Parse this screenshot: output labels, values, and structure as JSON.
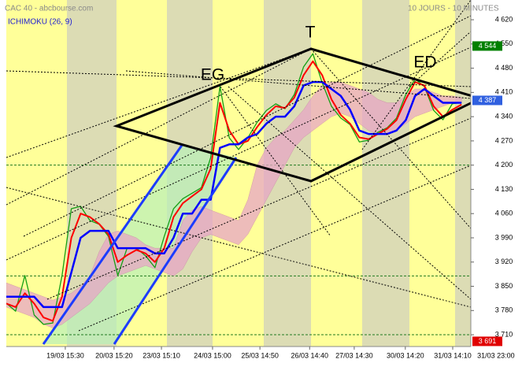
{
  "chart_data": {
    "type": "line",
    "title": "CAC 40 - abcbourse.com",
    "subtitle": "10 JOURS - 10 MINUTES",
    "indicator": "ICHIMOKU (26, 9)",
    "annotations": [
      "EG",
      "T",
      "ED"
    ],
    "xlim": [
      0,
      100
    ],
    "ylim": [
      3676,
      4677
    ],
    "xticks": [
      {
        "value": 12.7,
        "label": "19/03 15:30"
      },
      {
        "value": 23.2,
        "label": "20/03 15:20"
      },
      {
        "value": 33.4,
        "label": "23/03 15:10"
      },
      {
        "value": 44.4,
        "label": "24/03 15:00"
      },
      {
        "value": 54.6,
        "label": "25/03 14:50"
      },
      {
        "value": 65.3,
        "label": "26/03 14:40"
      },
      {
        "value": 74.9,
        "label": "27/03 14:30"
      },
      {
        "value": 85.9,
        "label": "30/03 14:20"
      },
      {
        "value": 96.1,
        "label": "31/03 14:10"
      },
      {
        "value": 105.4,
        "label": "31/03 23:00"
      }
    ],
    "yticks": [
      {
        "value": 4620,
        "label": "4 620"
      },
      {
        "value": 4550,
        "label": "4 550"
      },
      {
        "value": 4480,
        "label": "4 480"
      },
      {
        "value": 4410,
        "label": "4 410"
      },
      {
        "value": 4340,
        "label": "4 340"
      },
      {
        "value": 4270,
        "label": "4 270"
      },
      {
        "value": 4200,
        "label": "4 200"
      },
      {
        "value": 4130,
        "label": "4 130"
      },
      {
        "value": 4060,
        "label": "4 060"
      },
      {
        "value": 3990,
        "label": "3 990"
      },
      {
        "value": 3920,
        "label": "3 920"
      },
      {
        "value": 3850,
        "label": "3 850"
      },
      {
        "value": 3780,
        "label": "3 780"
      },
      {
        "value": 3710,
        "label": "3 710"
      }
    ],
    "hlines": [
      4200,
      3880,
      3710
    ],
    "markers": [
      {
        "value": 4544,
        "label": "4 544",
        "color": "#008000"
      },
      {
        "value": 4387,
        "label": "4 387",
        "color": "#3060e0"
      },
      {
        "value": 3691,
        "label": "3 691",
        "color": "#e00000"
      }
    ],
    "x": [
      0,
      2,
      4,
      6,
      8,
      10,
      12,
      14,
      16,
      18,
      20,
      22,
      24,
      26,
      28,
      30,
      32,
      34,
      36,
      38,
      40,
      42,
      44,
      46,
      48,
      50,
      52,
      54,
      56,
      58,
      60,
      62,
      64,
      66,
      68,
      70,
      72,
      74,
      76,
      78,
      80,
      82,
      84,
      86,
      88,
      90,
      92,
      94,
      96,
      98
    ],
    "cloud": {
      "color": "#e7a6c6",
      "upper": [
        3860,
        3850,
        3840,
        3830,
        3820,
        3810,
        3820,
        3830,
        3850,
        3880,
        3950,
        4000,
        4010,
        4000,
        3990,
        3970,
        3960,
        3960,
        3960,
        4040,
        4070,
        4080,
        4070,
        4060,
        4050,
        4040,
        4100,
        4200,
        4250,
        4280,
        4300,
        4330,
        4360,
        4400,
        4430,
        4440,
        4440,
        4430,
        4420,
        4410,
        4390,
        4380,
        4380,
        4400,
        4420,
        4420,
        4410,
        4400,
        4400,
        4395
      ],
      "lower": [
        3790,
        3780,
        3770,
        3760,
        3740,
        3730,
        3740,
        3760,
        3780,
        3800,
        3830,
        3860,
        3880,
        3890,
        3900,
        3910,
        3900,
        3890,
        3880,
        3900,
        3950,
        3990,
        4000,
        3990,
        3980,
        3970,
        4000,
        4050,
        4100,
        4150,
        4200,
        4250,
        4280,
        4300,
        4320,
        4340,
        4350,
        4340,
        4320,
        4300,
        4290,
        4290,
        4300,
        4320,
        4340,
        4350,
        4360,
        4370,
        4380,
        4380
      ]
    },
    "series": [
      {
        "color": "#14a014",
        "values": [
          3801,
          3778,
          3881,
          3767,
          3740,
          3744,
          3881,
          4074,
          4081,
          4040,
          4029,
          3994,
          3881,
          3960,
          3960,
          3938,
          3904,
          3994,
          4074,
          4103,
          4119,
          4135,
          4222,
          4427,
          4279,
          4245,
          4279,
          4324,
          4358,
          4377,
          4363,
          4404,
          4484,
          4522,
          4438,
          4370,
          4336,
          4317,
          4267,
          4272,
          4295,
          4308,
          4336,
          4404,
          4449,
          4427,
          4358,
          4331,
          4377,
          4381
        ]
      },
      {
        "color": "#ff0000",
        "values": [
          3800,
          3790,
          3830,
          3800,
          3760,
          3750,
          3820,
          3990,
          4060,
          4050,
          4030,
          4000,
          3920,
          3940,
          3955,
          3945,
          3920,
          3960,
          4050,
          4090,
          4110,
          4130,
          4190,
          4380,
          4300,
          4260,
          4270,
          4310,
          4345,
          4370,
          4365,
          4395,
          4460,
          4500,
          4460,
          4390,
          4345,
          4320,
          4280,
          4275,
          4290,
          4305,
          4330,
          4390,
          4440,
          4430,
          4370,
          4340,
          4360,
          4375
        ]
      },
      {
        "color": "#0000ff",
        "values": [
          3820,
          3820,
          3820,
          3820,
          3790,
          3790,
          3790,
          3890,
          3990,
          4010,
          4010,
          4010,
          3960,
          3960,
          3960,
          3960,
          3945,
          3945,
          3990,
          4060,
          4060,
          4100,
          4100,
          4250,
          4260,
          4260,
          4280,
          4290,
          4320,
          4340,
          4340,
          4370,
          4430,
          4440,
          4440,
          4420,
          4400,
          4360,
          4300,
          4290,
          4290,
          4290,
          4300,
          4330,
          4400,
          4420,
          4400,
          4380,
          4380,
          4380
        ]
      }
    ]
  }
}
